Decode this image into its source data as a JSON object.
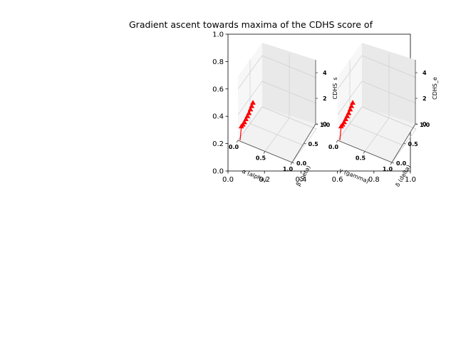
{
  "chart_data": {
    "type": "line",
    "title": "Gradient ascent towards maxima of the CDHS score of",
    "background_axes": {
      "xlim": [
        0.0,
        1.0
      ],
      "ylim": [
        0.0,
        1.0
      ],
      "xticks": [
        "0.0",
        "0.2",
        "0.4",
        "0.6",
        "0.8",
        "1.0"
      ],
      "yticks": [
        "0.0",
        "0.2",
        "0.4",
        "0.6",
        "0.8",
        "1.0"
      ]
    },
    "subplots": [
      {
        "xlabel": "α  (alpha)",
        "ylabel": "β (beta)",
        "zlabel": "CDHS_s",
        "xticks": [
          "0.0",
          "0.5",
          "1.0"
        ],
        "yticks": [
          "0.0",
          "0.5",
          "1.0"
        ],
        "zticks": [
          "0",
          "2",
          "4"
        ],
        "series_color": "#ff0000",
        "path": [
          {
            "x": 0.02,
            "y": 0.03,
            "z": 0.0
          },
          {
            "x": 0.05,
            "y": 0.04,
            "z": 1.0
          },
          {
            "x": 0.09,
            "y": 0.05,
            "z": 1.05
          },
          {
            "x": 0.13,
            "y": 0.06,
            "z": 1.15
          },
          {
            "x": 0.17,
            "y": 0.07,
            "z": 1.3
          },
          {
            "x": 0.21,
            "y": 0.08,
            "z": 1.45
          },
          {
            "x": 0.25,
            "y": 0.09,
            "z": 1.6
          },
          {
            "x": 0.29,
            "y": 0.1,
            "z": 1.8
          },
          {
            "x": 0.32,
            "y": 0.11,
            "z": 2.0
          },
          {
            "x": 0.35,
            "y": 0.12,
            "z": 2.2
          }
        ]
      },
      {
        "xlabel": "γ  (gamma)",
        "ylabel": "δ (delta)",
        "zlabel": "CDHS_e",
        "xticks": [
          "0.0",
          "0.5",
          "1.0"
        ],
        "yticks": [
          "0.0",
          "0.5",
          "1.0"
        ],
        "zticks": [
          "0",
          "2",
          "4"
        ],
        "series_color": "#ff0000",
        "path": [
          {
            "x": 0.02,
            "y": 0.03,
            "z": 0.0
          },
          {
            "x": 0.05,
            "y": 0.04,
            "z": 1.0
          },
          {
            "x": 0.09,
            "y": 0.05,
            "z": 1.05
          },
          {
            "x": 0.13,
            "y": 0.06,
            "z": 1.15
          },
          {
            "x": 0.17,
            "y": 0.07,
            "z": 1.3
          },
          {
            "x": 0.21,
            "y": 0.08,
            "z": 1.45
          },
          {
            "x": 0.25,
            "y": 0.09,
            "z": 1.6
          },
          {
            "x": 0.29,
            "y": 0.1,
            "z": 1.8
          },
          {
            "x": 0.32,
            "y": 0.11,
            "z": 2.0
          },
          {
            "x": 0.35,
            "y": 0.12,
            "z": 2.2
          }
        ]
      }
    ]
  }
}
